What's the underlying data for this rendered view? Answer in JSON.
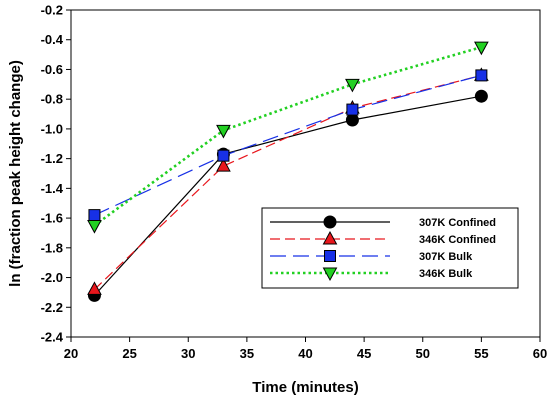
{
  "chart_data": {
    "type": "line",
    "title": "",
    "xlabel": "Time (minutes)",
    "ylabel": "ln (fraction peak height change)",
    "xlim": [
      20,
      60
    ],
    "ylim": [
      -2.4,
      -0.2
    ],
    "xticks": [
      "20",
      "25",
      "30",
      "35",
      "40",
      "45",
      "50",
      "55",
      "60"
    ],
    "yticks": [
      "-2.4",
      "-2.2",
      "-2.0",
      "-1.8",
      "-1.6",
      "-1.4",
      "-1.2",
      "-1.0",
      "-0.8",
      "-0.6",
      "-0.4",
      "-0.2"
    ],
    "grid": false,
    "legend_position": "center-right",
    "series": [
      {
        "name": "307K Confined",
        "x": [
          22,
          33,
          44,
          55
        ],
        "y": [
          -2.12,
          -1.17,
          -0.94,
          -0.78
        ],
        "color": "#000000",
        "marker": "circle",
        "line": "solid"
      },
      {
        "name": "346K Confined",
        "x": [
          22,
          33,
          44,
          55
        ],
        "y": [
          -2.08,
          -1.25,
          -0.86,
          -0.64
        ],
        "color": "#e8161c",
        "marker": "triangle-up",
        "line": "dashed"
      },
      {
        "name": "307K Bulk",
        "x": [
          22,
          33,
          44,
          55
        ],
        "y": [
          -1.58,
          -1.18,
          -0.87,
          -0.64
        ],
        "color": "#1730e6",
        "marker": "square",
        "line": "long-dash"
      },
      {
        "name": "346K Bulk",
        "x": [
          22,
          33,
          44,
          55
        ],
        "y": [
          -1.65,
          -1.01,
          -0.7,
          -0.45
        ],
        "color": "#22d022",
        "marker": "triangle-down",
        "line": "dotted"
      }
    ]
  }
}
